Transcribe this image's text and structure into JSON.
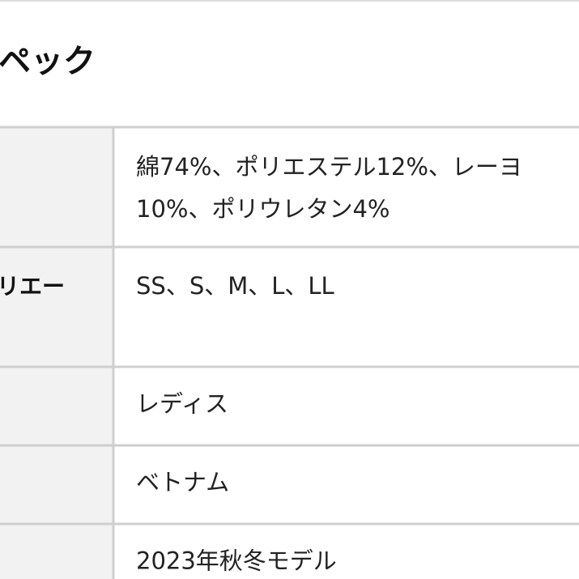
{
  "header": {
    "title": "ペック"
  },
  "table": {
    "rows": [
      {
        "label": null,
        "value": [
          "綿74%、ポリエステル12%、レーヨ",
          "10%、ポリウレタン4%"
        ]
      },
      {
        "label": "リエー",
        "value": [
          "SS、S、M、L、LL"
        ]
      },
      {
        "label": null,
        "value": [
          "レディス"
        ]
      },
      {
        "label": null,
        "value": [
          "ベトナム"
        ]
      },
      {
        "label": null,
        "value": [
          "2023年秋冬モデル"
        ]
      }
    ]
  }
}
